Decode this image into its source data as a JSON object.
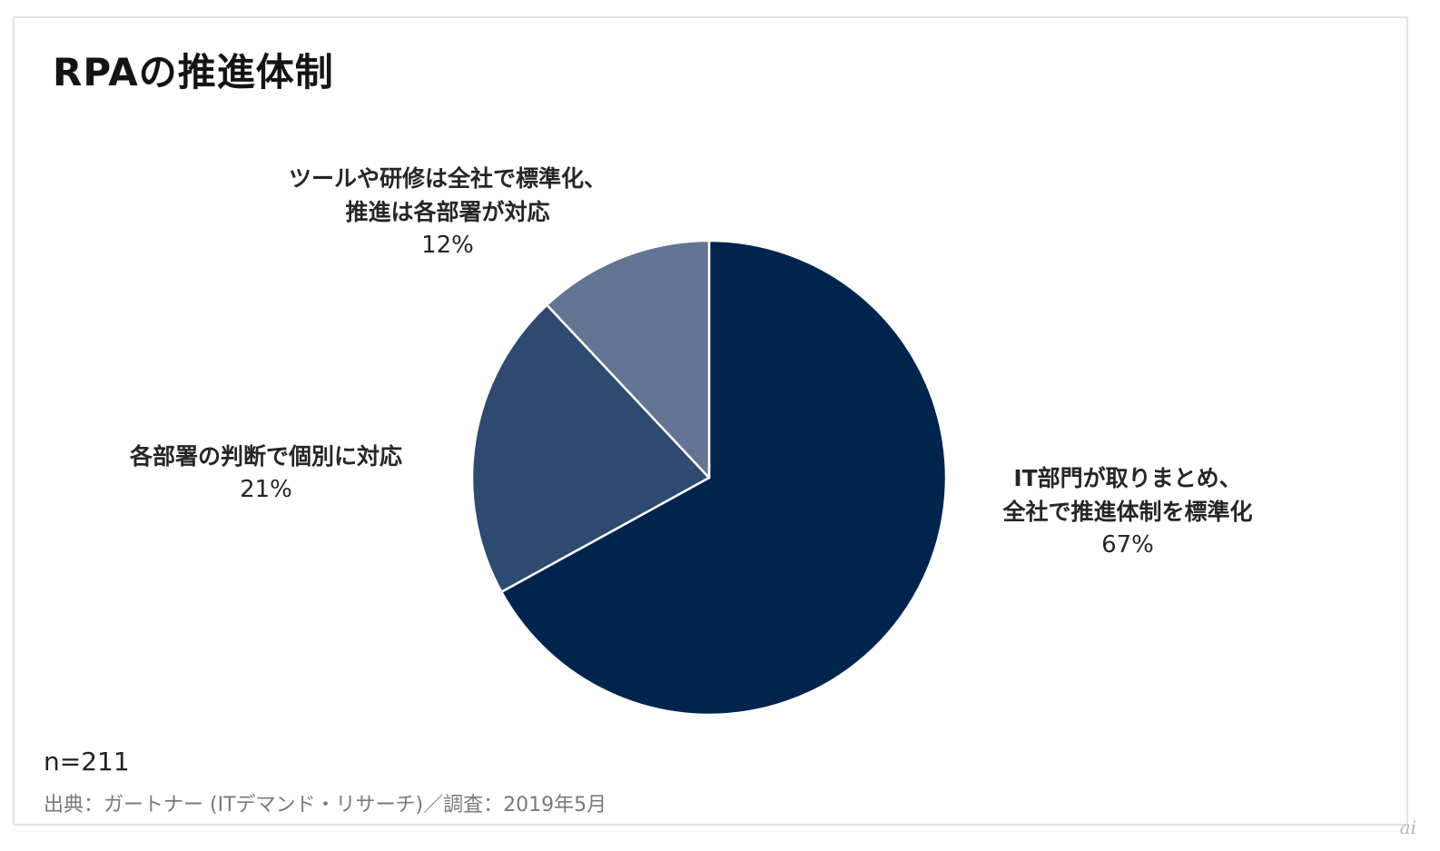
{
  "title": "RPAの推進体制",
  "n_label": "n=211",
  "source": "出典：ガートナー (ITデマンド・リサーチ)／調査：2019年5月",
  "watermark": "ai",
  "chart_data": {
    "type": "pie",
    "title": "RPAの推進体制",
    "slices": [
      {
        "label_lines": [
          "IT部門が取りまとめ、",
          "全社で推進体制を標準化"
        ],
        "value": 67,
        "value_label": "67%",
        "color": "#00244d"
      },
      {
        "label_lines": [
          "各部署の判断で個別に対応"
        ],
        "value": 21,
        "value_label": "21%",
        "color": "#2e4a70"
      },
      {
        "label_lines": [
          "ツールや研修は全社で標準化、",
          "推進は各部署が対応"
        ],
        "value": 12,
        "value_label": "12%",
        "color": "#647493"
      }
    ],
    "start_angle": "12 o'clock",
    "direction": "clockwise",
    "legend": "none",
    "note": "n=211"
  }
}
